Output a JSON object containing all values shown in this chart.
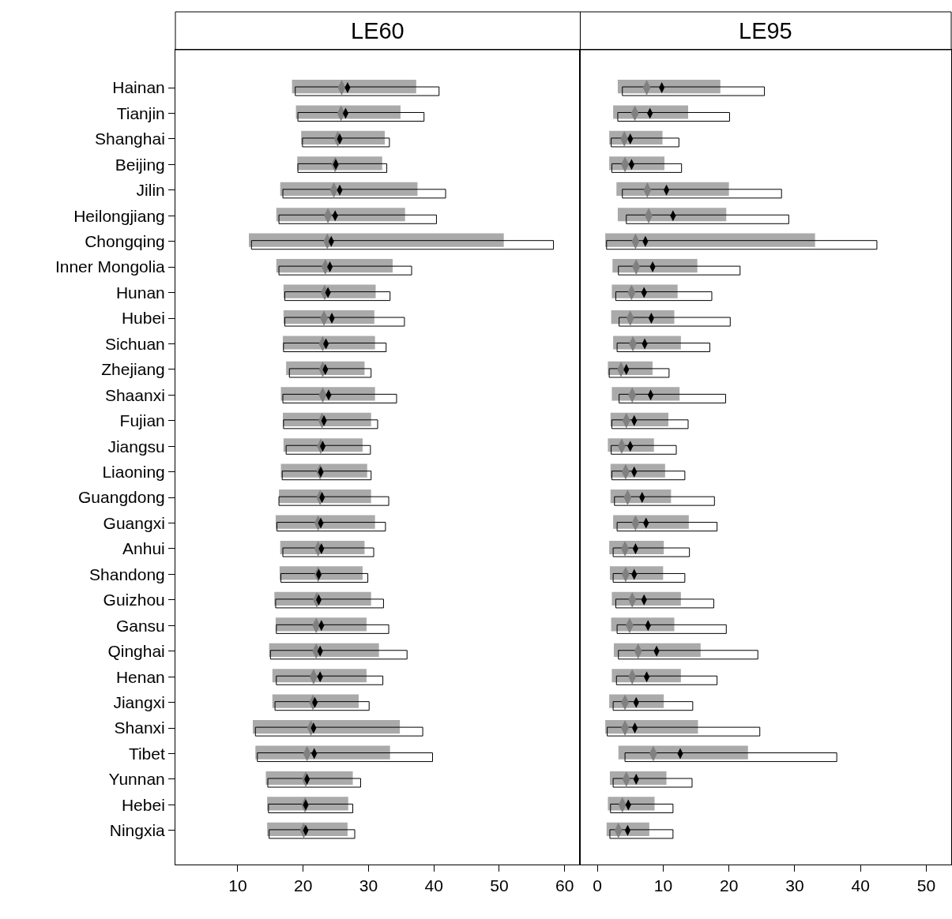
{
  "chart_data": [
    {
      "type": "bar",
      "orientation": "horizontal",
      "title": "LE60",
      "categories": [
        "Hainan",
        "Tianjin",
        "Shanghai",
        "Beijing",
        "Jilin",
        "Heilongjiang",
        "Chongqing",
        "Inner Mongolia",
        "Hunan",
        "Hubei",
        "Sichuan",
        "Zhejiang",
        "Shaanxi",
        "Fujian",
        "Jiangsu",
        "Liaoning",
        "Guangdong",
        "Guangxi",
        "Anhui",
        "Shandong",
        "Guizhou",
        "Gansu",
        "Qinghai",
        "Henan",
        "Jiangxi",
        "Shanxi",
        "Tibet",
        "Yunnan",
        "Hebei",
        "Ningxia"
      ],
      "marker": "diamond",
      "xlim": [
        0.46,
        62.4
      ],
      "xticks": [
        10,
        20,
        30,
        40,
        50,
        60
      ],
      "series": [
        {
          "type": "bar",
          "color": "#aaaaaa",
          "base": [
            18.3,
            18.9,
            19.7,
            19.1,
            16.5,
            15.9,
            11.7,
            15.9,
            17.0,
            17.0,
            16.9,
            17.4,
            16.6,
            16.9,
            17.0,
            16.6,
            16.3,
            15.8,
            16.5,
            16.4,
            15.6,
            15.8,
            14.8,
            15.3,
            15.3,
            12.3,
            12.7,
            14.3,
            14.5,
            14.5
          ],
          "values": [
            19.0,
            16.0,
            12.8,
            13.0,
            21.0,
            19.7,
            39.0,
            17.8,
            14.1,
            13.9,
            14.1,
            12.0,
            14.4,
            13.5,
            12.1,
            13.2,
            14.1,
            15.2,
            12.9,
            12.7,
            14.8,
            13.9,
            16.8,
            14.4,
            13.2,
            22.5,
            20.6,
            13.3,
            12.4,
            12.3
          ]
        },
        {
          "type": "bar",
          "color": "#000000",
          "base": [
            18.8,
            19.2,
            19.9,
            19.2,
            16.9,
            16.3,
            12.1,
            16.3,
            17.2,
            17.2,
            17.0,
            17.9,
            16.9,
            17.0,
            17.4,
            16.8,
            16.3,
            16.0,
            16.9,
            16.6,
            15.8,
            15.9,
            15.0,
            15.9,
            15.7,
            12.7,
            13.0,
            14.6,
            14.7,
            14.8
          ],
          "values": [
            22.0,
            19.3,
            13.3,
            13.6,
            24.9,
            24.1,
            46.2,
            20.3,
            16.1,
            18.3,
            15.7,
            12.5,
            17.4,
            14.4,
            12.9,
            13.6,
            16.8,
            16.6,
            13.9,
            13.3,
            16.5,
            17.2,
            20.9,
            16.3,
            14.4,
            25.6,
            26.8,
            14.2,
            12.9,
            13.1
          ]
        },
        {
          "type": "scatter",
          "color": "#808080",
          "values": [
            25.9,
            25.8,
            25.3,
            24.9,
            24.7,
            23.8,
            23.7,
            23.4,
            23.3,
            23.2,
            23.0,
            23.0,
            23.0,
            22.9,
            22.7,
            22.6,
            22.6,
            22.3,
            22.3,
            22.3,
            22.1,
            22.0,
            22.0,
            21.6,
            21.5,
            21.2,
            20.6,
            20.4,
            20.3,
            20.1
          ]
        },
        {
          "type": "scatter",
          "color": "#000000",
          "values": [
            26.8,
            26.5,
            25.6,
            25.0,
            25.6,
            24.9,
            24.3,
            24.1,
            23.8,
            24.4,
            23.5,
            23.4,
            23.9,
            23.2,
            23.0,
            22.7,
            22.9,
            22.7,
            22.8,
            22.4,
            22.4,
            22.8,
            22.6,
            22.6,
            21.8,
            21.6,
            21.7,
            20.6,
            20.4,
            20.4
          ]
        }
      ]
    },
    {
      "type": "bar",
      "orientation": "horizontal",
      "title": "LE95",
      "tick_labels": "x",
      "categories": [
        "Hainan",
        "Tianjin",
        "Shanghai",
        "Beijing",
        "Jilin",
        "Heilongjiang",
        "Chongqing",
        "Inner Mongolia",
        "Hunan",
        "Hubei",
        "Sichuan",
        "Zhejiang",
        "Shaanxi",
        "Fujian",
        "Jiangsu",
        "Liaoning",
        "Guangdong",
        "Guangxi",
        "Anhui",
        "Shandong",
        "Guizhou",
        "Gansu",
        "Qinghai",
        "Henan",
        "Jiangxi",
        "Shanxi",
        "Tibet",
        "Yunnan",
        "Hebei",
        "Ningxia"
      ],
      "marker": "diamond",
      "xlim": [
        -2.6,
        53.8
      ],
      "xticks": [
        0,
        10,
        20,
        30,
        40,
        50
      ],
      "series": [
        {
          "type": "bar",
          "color": "#aaaaaa",
          "base": [
            3.1,
            2.4,
            1.8,
            1.8,
            2.9,
            3.1,
            1.2,
            2.3,
            2.2,
            2.1,
            2.4,
            1.6,
            2.2,
            2.0,
            1.6,
            2.0,
            2.0,
            2.4,
            1.8,
            1.9,
            2.2,
            2.1,
            2.5,
            2.2,
            1.8,
            1.2,
            3.2,
            1.9,
            1.6,
            1.4
          ],
          "values": [
            15.6,
            11.4,
            8.1,
            8.4,
            17.1,
            16.5,
            31.9,
            12.9,
            10.0,
            9.6,
            10.3,
            6.8,
            10.3,
            8.8,
            7.0,
            8.3,
            9.2,
            11.5,
            8.3,
            8.1,
            10.5,
            9.6,
            13.2,
            10.5,
            8.3,
            14.1,
            19.7,
            8.6,
            7.1,
            6.5
          ]
        },
        {
          "type": "bar",
          "color": "#000000",
          "base": [
            3.8,
            3.1,
            2.1,
            2.2,
            3.8,
            4.4,
            1.4,
            3.2,
            2.8,
            3.3,
            3.0,
            1.8,
            3.3,
            2.2,
            2.1,
            2.2,
            2.6,
            3.0,
            2.4,
            2.4,
            2.8,
            3.0,
            3.2,
            2.9,
            2.4,
            1.5,
            4.2,
            2.4,
            2.0,
            1.9
          ],
          "values": [
            21.6,
            17.0,
            10.3,
            10.6,
            24.2,
            24.7,
            41.1,
            18.5,
            14.6,
            16.9,
            14.1,
            9.1,
            16.2,
            11.6,
            9.9,
            11.1,
            15.2,
            15.2,
            11.6,
            10.9,
            14.9,
            16.6,
            21.2,
            15.3,
            12.1,
            23.2,
            32.2,
            12.0,
            9.5,
            9.6
          ]
        },
        {
          "type": "scatter",
          "color": "#808080",
          "values": [
            7.5,
            5.7,
            4.1,
            4.2,
            7.6,
            7.8,
            5.8,
            5.9,
            5.2,
            5.0,
            5.4,
            3.6,
            5.3,
            4.4,
            3.7,
            4.3,
            4.6,
            5.8,
            4.2,
            4.3,
            5.3,
            4.9,
            6.2,
            5.3,
            4.2,
            4.2,
            8.5,
            4.4,
            3.8,
            3.2
          ]
        },
        {
          "type": "scatter",
          "color": "#000000",
          "values": [
            9.8,
            8.0,
            5.0,
            5.2,
            10.5,
            11.5,
            7.3,
            8.4,
            7.1,
            8.2,
            7.2,
            4.4,
            8.1,
            5.6,
            5.0,
            5.6,
            6.8,
            7.4,
            5.8,
            5.6,
            7.1,
            7.7,
            9.0,
            7.5,
            5.9,
            5.7,
            12.6,
            5.9,
            4.7,
            4.6
          ]
        }
      ]
    }
  ]
}
